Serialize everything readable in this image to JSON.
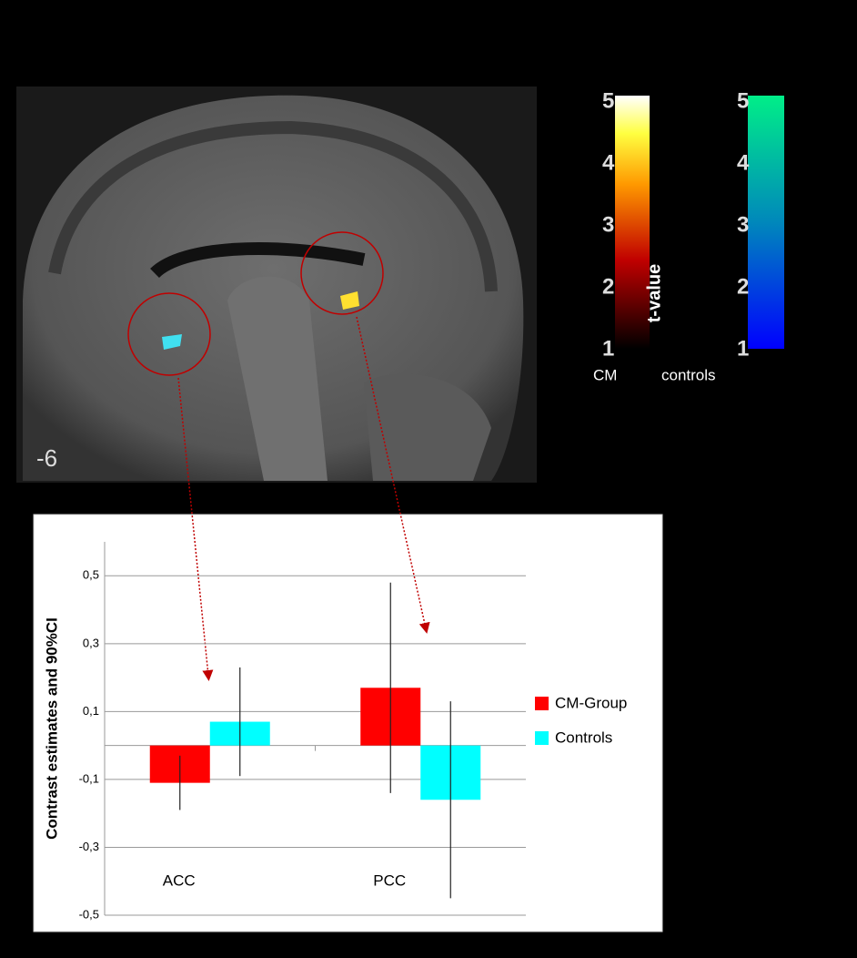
{
  "brain": {
    "slice_label": "-6",
    "colorbars": [
      {
        "ticks": [
          "5",
          "4",
          "3",
          "2",
          "1"
        ],
        "label": "CM",
        "title": "t-value"
      },
      {
        "ticks": [
          "5",
          "4",
          "3",
          "2",
          "1"
        ],
        "label": "controls"
      }
    ]
  },
  "chart_data": {
    "type": "bar",
    "y_label": "Contrast estimates and 90%CI",
    "categories": [
      "ACC",
      "PCC"
    ],
    "series": [
      {
        "name": "CM-Group",
        "color": "#ff0000",
        "values": [
          -0.11,
          0.17
        ],
        "errors": [
          0.08,
          0.31
        ]
      },
      {
        "name": "Controls",
        "color": "#00ffff",
        "values": [
          0.07,
          -0.16
        ],
        "errors": [
          0.16,
          0.29
        ]
      }
    ],
    "ylim": [
      -0.5,
      0.6
    ],
    "yticks": [
      {
        "value": 0.5,
        "label": "0,5"
      },
      {
        "value": 0.3,
        "label": "0,3"
      },
      {
        "value": 0.1,
        "label": "0,1"
      },
      {
        "value": -0.1,
        "label": "-0,1"
      },
      {
        "value": -0.3,
        "label": "-0,3"
      },
      {
        "value": -0.5,
        "label": "-0,5"
      }
    ],
    "grid": true,
    "legend": "right"
  }
}
